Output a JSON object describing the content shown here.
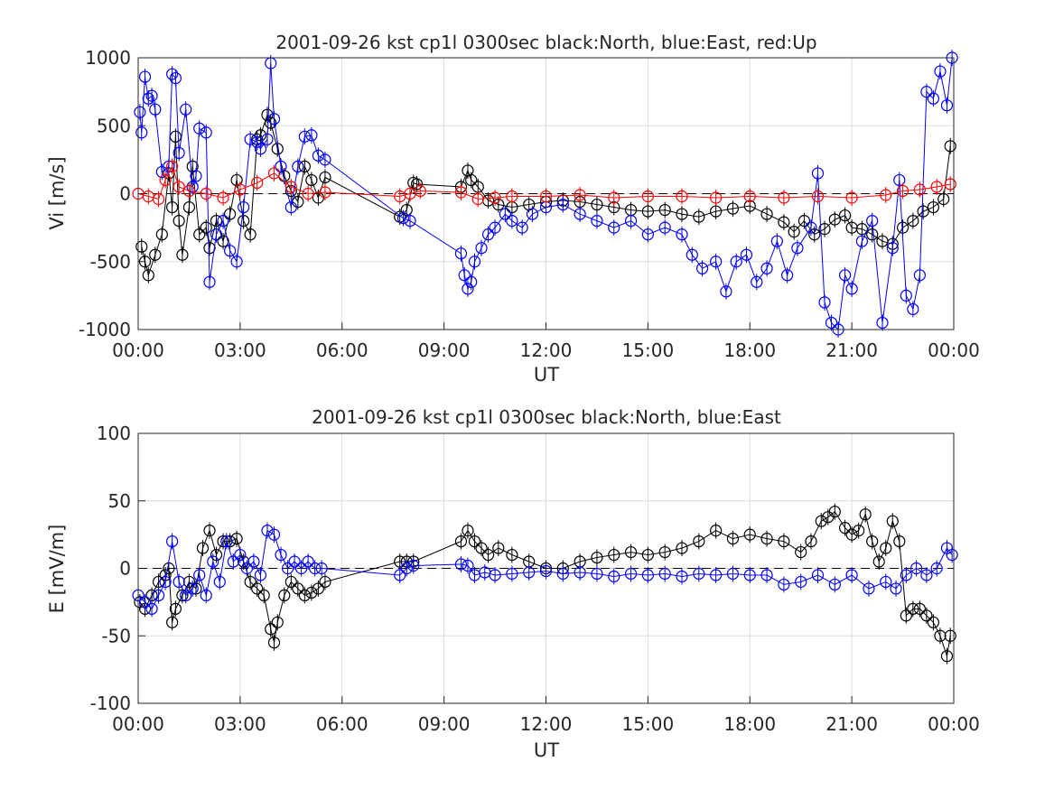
{
  "chart_data": [
    {
      "type": "line",
      "title": "2001-09-26 kst cp1l 0300sec black:North, blue:East, red:Up",
      "xlabel": "UT",
      "ylabel": "Vi [m/s]",
      "xlim": [
        0,
        24
      ],
      "ylim": [
        -1000,
        1000
      ],
      "xticks": [
        0,
        3,
        6,
        9,
        12,
        15,
        18,
        21,
        24
      ],
      "xtick_labels": [
        "00:00",
        "03:00",
        "06:00",
        "09:00",
        "12:00",
        "15:00",
        "18:00",
        "21:00",
        "00:00"
      ],
      "yticks": [
        -1000,
        -500,
        0,
        500,
        1000
      ],
      "ytick_labels": [
        "-1000",
        "-500",
        "0",
        "500",
        "1000"
      ],
      "grid": true,
      "colors": {
        "north": "#000000",
        "east": "#0000ff",
        "up": "#ff0000"
      },
      "series": [
        {
          "key": "north",
          "x": [
            0.1,
            0.2,
            0.3,
            0.5,
            0.7,
            0.9,
            1.0,
            1.1,
            1.2,
            1.3,
            1.5,
            1.6,
            1.8,
            2.0,
            2.1,
            2.3,
            2.5,
            2.7,
            2.9,
            3.1,
            3.3,
            3.5,
            3.6,
            3.8,
            3.9,
            4.1,
            4.3,
            4.5,
            4.7,
            4.9,
            5.1,
            5.3,
            5.5,
            7.7,
            7.9,
            8.1,
            8.2,
            9.5,
            9.7,
            9.8,
            10.0,
            10.3,
            10.6,
            11.0,
            11.5,
            12.0,
            12.5,
            13.0,
            13.5,
            14.0,
            14.5,
            15.0,
            15.5,
            16.0,
            16.5,
            17.0,
            17.5,
            18.0,
            18.5,
            19.0,
            19.3,
            19.6,
            19.9,
            20.2,
            20.5,
            20.8,
            21.0,
            21.3,
            21.6,
            21.9,
            22.2,
            22.5,
            22.8,
            23.1,
            23.4,
            23.7,
            23.9
          ],
          "values": [
            -390,
            -500,
            -600,
            -450,
            -300,
            150,
            -100,
            420,
            -200,
            -450,
            -100,
            200,
            -300,
            -250,
            -400,
            -200,
            -350,
            -150,
            100,
            -200,
            -300,
            400,
            430,
            580,
            520,
            330,
            130,
            20,
            -60,
            200,
            100,
            -30,
            120,
            -170,
            -120,
            80,
            70,
            50,
            170,
            100,
            50,
            -50,
            -80,
            -100,
            -80,
            -60,
            -50,
            -60,
            -80,
            -100,
            -120,
            -130,
            -120,
            -150,
            -170,
            -130,
            -110,
            -90,
            -150,
            -210,
            -280,
            -200,
            -300,
            -260,
            -190,
            -160,
            -250,
            -260,
            -300,
            -350,
            -370,
            -250,
            -200,
            -130,
            -100,
            -40,
            350
          ]
        },
        {
          "key": "east",
          "x": [
            0.05,
            0.1,
            0.2,
            0.3,
            0.4,
            0.5,
            0.7,
            0.9,
            1.0,
            1.1,
            1.2,
            1.4,
            1.6,
            1.7,
            1.8,
            2.0,
            2.1,
            2.3,
            2.5,
            2.7,
            2.9,
            3.1,
            3.3,
            3.5,
            3.6,
            3.8,
            3.9,
            4.0,
            4.2,
            4.5,
            4.7,
            4.9,
            5.1,
            5.3,
            5.5,
            7.8,
            8.0,
            9.5,
            9.6,
            9.7,
            9.8,
            9.9,
            10.1,
            10.3,
            10.5,
            10.8,
            11.0,
            11.3,
            11.6,
            12.0,
            12.5,
            13.0,
            13.5,
            14.0,
            14.5,
            15.0,
            15.5,
            16.0,
            16.3,
            16.6,
            17.0,
            17.3,
            17.6,
            17.9,
            18.2,
            18.5,
            18.8,
            19.1,
            19.4,
            19.8,
            20.0,
            20.2,
            20.4,
            20.6,
            20.8,
            21.0,
            21.3,
            21.6,
            21.9,
            22.2,
            22.4,
            22.6,
            22.8,
            23.0,
            23.2,
            23.4,
            23.6,
            23.8,
            23.95
          ],
          "values": [
            600,
            450,
            860,
            700,
            720,
            620,
            160,
            200,
            880,
            850,
            300,
            620,
            50,
            130,
            480,
            450,
            -650,
            -300,
            -200,
            -420,
            -500,
            -100,
            400,
            380,
            330,
            400,
            960,
            550,
            200,
            -100,
            200,
            420,
            430,
            280,
            250,
            -180,
            -200,
            -440,
            -600,
            -700,
            -650,
            -500,
            -400,
            -300,
            -250,
            -150,
            -200,
            -250,
            -150,
            -100,
            -80,
            -150,
            -200,
            -250,
            -200,
            -300,
            -250,
            -300,
            -450,
            -550,
            -500,
            -720,
            -500,
            -450,
            -650,
            -550,
            -350,
            -600,
            -400,
            -250,
            150,
            -800,
            -950,
            -1000,
            -600,
            -700,
            -350,
            -200,
            -950,
            -400,
            100,
            -750,
            -850,
            -600,
            750,
            700,
            900,
            650,
            1000
          ]
        },
        {
          "key": "up",
          "x": [
            0.0,
            0.3,
            0.6,
            0.8,
            1.0,
            1.2,
            1.5,
            2.0,
            2.5,
            3.0,
            3.5,
            4.0,
            4.5,
            5.0,
            5.5,
            7.7,
            8.0,
            8.3,
            9.5,
            10.0,
            10.5,
            11.0,
            12.0,
            13.0,
            14.0,
            15.0,
            16.0,
            17.0,
            18.0,
            19.0,
            20.0,
            21.0,
            22.0,
            22.5,
            23.0,
            23.5,
            23.9
          ],
          "values": [
            0,
            -20,
            -40,
            100,
            200,
            50,
            20,
            0,
            -30,
            30,
            80,
            150,
            50,
            0,
            10,
            -20,
            0,
            20,
            10,
            -40,
            -30,
            -20,
            -20,
            -10,
            -30,
            -20,
            -20,
            -30,
            -20,
            -30,
            -20,
            -30,
            -10,
            20,
            30,
            50,
            70
          ]
        }
      ]
    },
    {
      "type": "line",
      "title": "2001-09-26 kst cp1l 0300sec black:North, blue:East",
      "xlabel": "UT",
      "ylabel": "E [mV/m]",
      "xlim": [
        0,
        24
      ],
      "ylim": [
        -100,
        100
      ],
      "xticks": [
        0,
        3,
        6,
        9,
        12,
        15,
        18,
        21,
        24
      ],
      "xtick_labels": [
        "00:00",
        "03:00",
        "06:00",
        "09:00",
        "12:00",
        "15:00",
        "18:00",
        "21:00",
        "00:00"
      ],
      "yticks": [
        -100,
        -50,
        0,
        50,
        100
      ],
      "ytick_labels": [
        "-100",
        "-50",
        "0",
        "50",
        "100"
      ],
      "grid": true,
      "colors": {
        "north": "#000000",
        "east": "#0000ff"
      },
      "series": [
        {
          "key": "north",
          "x": [
            0.05,
            0.2,
            0.4,
            0.6,
            0.8,
            0.9,
            1.0,
            1.1,
            1.3,
            1.5,
            1.7,
            1.9,
            2.1,
            2.3,
            2.5,
            2.7,
            2.9,
            3.1,
            3.3,
            3.5,
            3.7,
            3.9,
            4.0,
            4.1,
            4.3,
            4.5,
            4.7,
            4.9,
            5.1,
            5.3,
            5.5,
            7.7,
            7.9,
            8.1,
            9.5,
            9.7,
            9.9,
            10.1,
            10.3,
            10.6,
            11.0,
            11.5,
            12.0,
            12.5,
            13.0,
            13.5,
            14.0,
            14.5,
            15.0,
            15.5,
            16.0,
            16.5,
            17.0,
            17.5,
            18.0,
            18.5,
            19.0,
            19.5,
            19.8,
            20.1,
            20.3,
            20.5,
            20.8,
            21.0,
            21.2,
            21.4,
            21.6,
            21.8,
            22.0,
            22.2,
            22.4,
            22.6,
            22.8,
            23.0,
            23.2,
            23.4,
            23.6,
            23.8,
            23.9
          ],
          "values": [
            -25,
            -30,
            -20,
            -10,
            -5,
            0,
            -40,
            -30,
            -20,
            -10,
            -15,
            15,
            28,
            10,
            20,
            20,
            22,
            5,
            -10,
            -15,
            -20,
            -45,
            -55,
            -40,
            -20,
            -10,
            -15,
            -20,
            -18,
            -15,
            -10,
            5,
            5,
            5,
            20,
            28,
            20,
            15,
            10,
            15,
            10,
            5,
            0,
            0,
            5,
            8,
            10,
            12,
            10,
            12,
            15,
            20,
            28,
            22,
            25,
            22,
            20,
            12,
            20,
            35,
            38,
            42,
            30,
            25,
            28,
            40,
            20,
            5,
            15,
            35,
            20,
            -35,
            -30,
            -30,
            -35,
            -40,
            -50,
            -65,
            -50
          ]
        },
        {
          "key": "east",
          "x": [
            0.0,
            0.2,
            0.4,
            0.6,
            0.8,
            1.0,
            1.2,
            1.4,
            1.6,
            1.8,
            2.0,
            2.2,
            2.4,
            2.6,
            2.8,
            3.0,
            3.2,
            3.4,
            3.6,
            3.8,
            4.0,
            4.2,
            4.4,
            4.6,
            4.8,
            5.0,
            5.2,
            5.4,
            7.7,
            7.9,
            8.1,
            9.5,
            9.7,
            9.9,
            10.2,
            10.5,
            11.0,
            11.5,
            12.0,
            12.5,
            13.0,
            13.5,
            14.0,
            14.5,
            15.0,
            15.5,
            16.0,
            16.5,
            17.0,
            17.5,
            18.0,
            18.5,
            19.0,
            19.5,
            20.0,
            20.5,
            21.0,
            21.5,
            22.0,
            22.3,
            22.6,
            22.9,
            23.2,
            23.5,
            23.8,
            23.95
          ],
          "values": [
            -20,
            -25,
            -30,
            -20,
            -10,
            20,
            -10,
            -20,
            -15,
            -5,
            -20,
            5,
            -10,
            20,
            5,
            10,
            0,
            5,
            -5,
            28,
            25,
            10,
            0,
            5,
            0,
            5,
            0,
            0,
            -5,
            0,
            2,
            3,
            2,
            -5,
            -3,
            -5,
            -4,
            -3,
            -2,
            -4,
            -3,
            -4,
            -6,
            -4,
            -5,
            -4,
            -6,
            -4,
            -5,
            -4,
            -5,
            -5,
            -12,
            -10,
            -5,
            -12,
            -5,
            -15,
            -10,
            -15,
            -5,
            0,
            -5,
            0,
            15,
            10
          ]
        }
      ]
    }
  ]
}
